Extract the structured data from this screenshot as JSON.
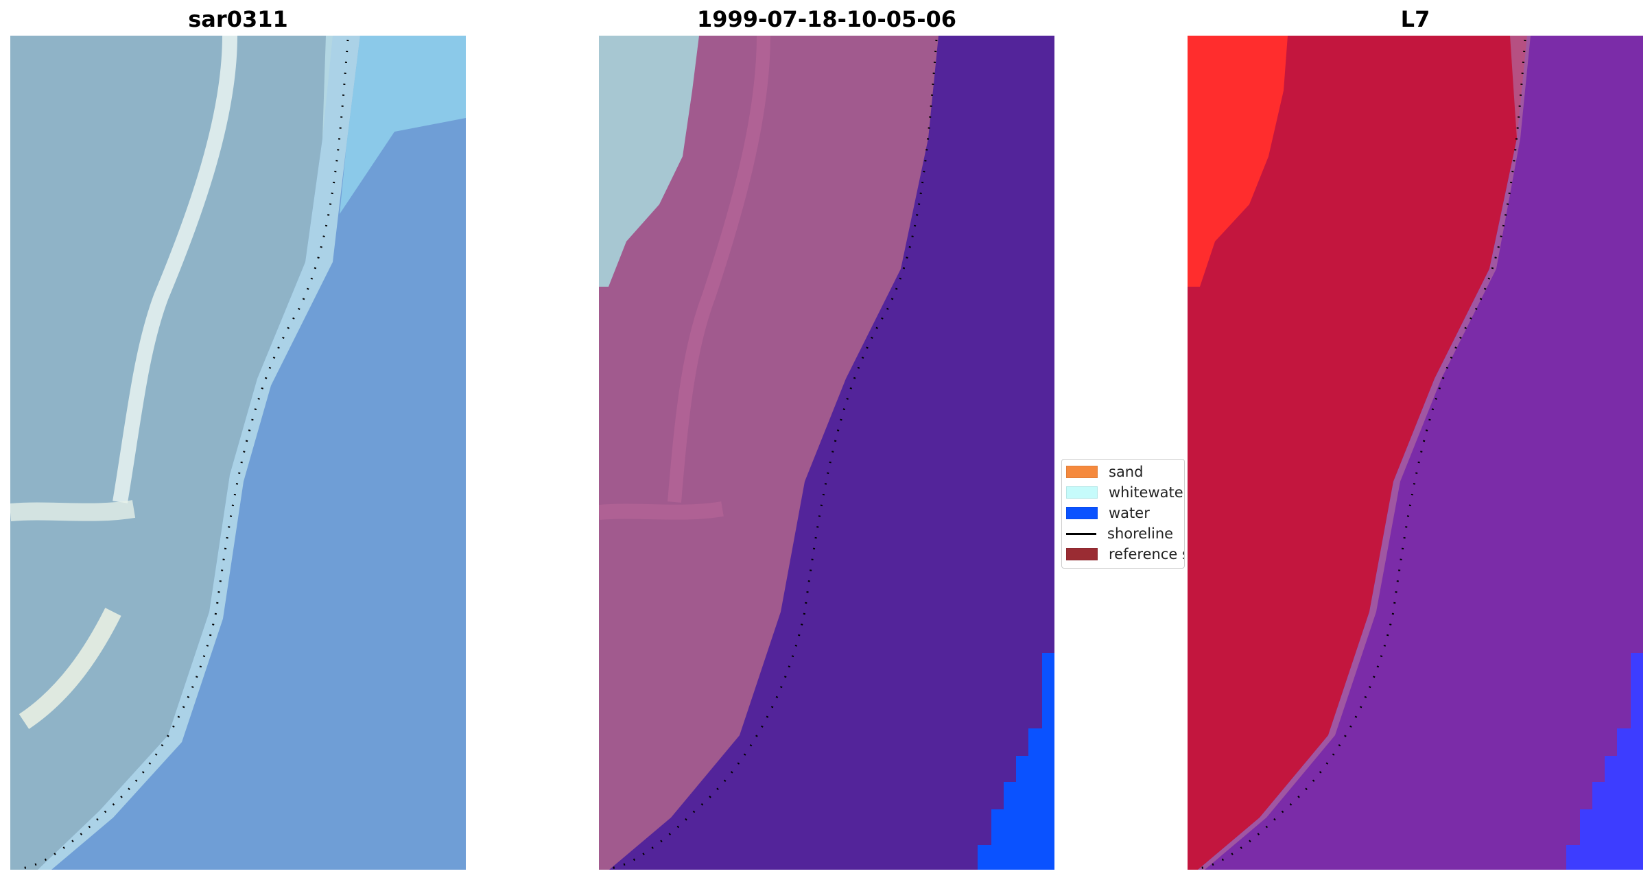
{
  "panels": [
    {
      "title": "sar0311"
    },
    {
      "title": "1999-07-18-10-05-06"
    },
    {
      "title": "L7"
    }
  ],
  "legend": {
    "items": [
      {
        "label": "sand",
        "color": "#f5893d",
        "kind": "patch"
      },
      {
        "label": "whitewater",
        "color": "#c6fbfb",
        "kind": "patch"
      },
      {
        "label": "water",
        "color": "#0a52ff",
        "kind": "patch"
      },
      {
        "label": "shoreline",
        "color": "#000000",
        "kind": "line"
      },
      {
        "label": "reference s",
        "color": "#9a2c33",
        "kind": "patch"
      }
    ]
  },
  "colors": {
    "rgb_land": "#8fb3c7",
    "rgb_sea": "#6f9ed6",
    "rgb_surf": "#e6f5f0",
    "class_land": "#a15a8e",
    "class_sea": "#53249a",
    "class_white": "#a7c7d2",
    "class_water": "#0a52ff",
    "index_land": "#c3163e",
    "index_sea": "#7b2ca8",
    "index_hot": "#ff2d2d",
    "index_water": "#3d3dff"
  }
}
